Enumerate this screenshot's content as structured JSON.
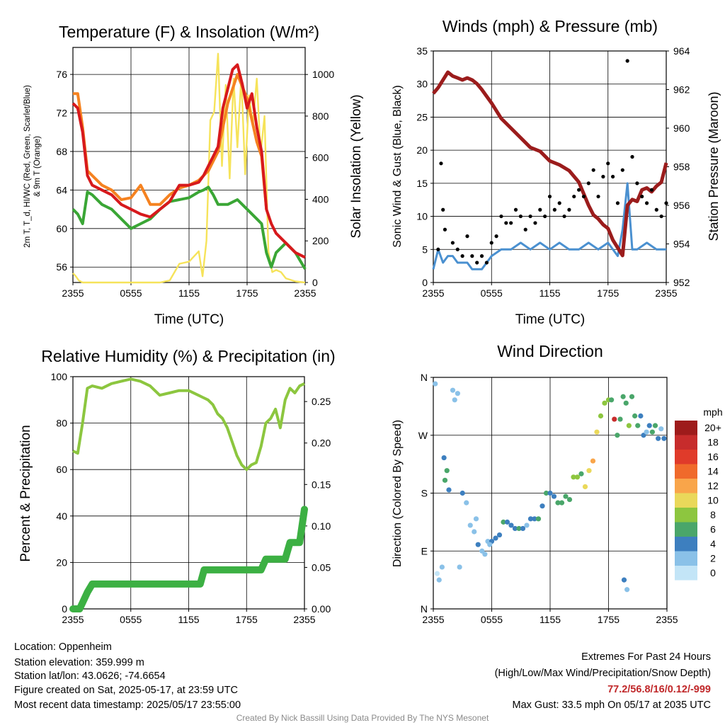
{
  "chart_data": [
    {
      "type": "line",
      "title": "Temperature (F) & Insolation (W/m²)",
      "xlabel": "Time (UTC)",
      "ylabel_line1": "2m T, T_d, HI/WC (Red, Green, Scarlet/Blue)",
      "ylabel_line2": "& 9m T (Orange)",
      "y2label": "Solar Insolation (Yellow)",
      "xticks": [
        "2355",
        "0555",
        "1155",
        "1755",
        "2355"
      ],
      "ylim": [
        54.4,
        78.8
      ],
      "yticks": [
        "56",
        "60",
        "64",
        "68",
        "72",
        "76"
      ],
      "y2lim": [
        0,
        1130
      ],
      "y2ticks": [
        "0",
        "200",
        "400",
        "600",
        "800",
        "1000"
      ],
      "colors": {
        "temp": "#d7191c",
        "hiwc": "#b2182b",
        "t9m": "#f58220",
        "dew": "#3aa635",
        "solar": "#f6e35a"
      },
      "series": [
        {
          "name": "2m T",
          "x": [
            0,
            0.5,
            1.0,
            1.5,
            2.0,
            3.0,
            4.0,
            5.0,
            6.0,
            7.0,
            8.0,
            9.0,
            10.0,
            11.0,
            12.0,
            13.0,
            13.5,
            14.0,
            14.5,
            15.0,
            15.5,
            16.0,
            16.5,
            17.0,
            17.5,
            18.0,
            18.5,
            19.0,
            19.5,
            20.0,
            20.5,
            21,
            22,
            23,
            24
          ],
          "y": [
            73,
            72.5,
            70,
            65.5,
            64.5,
            64.0,
            63.5,
            62.5,
            62.0,
            61.5,
            61.2,
            62.0,
            62.8,
            64.5,
            64.5,
            64.8,
            65.5,
            66.5,
            67.5,
            68.5,
            72.5,
            74.5,
            76.5,
            77.0,
            75.0,
            72.5,
            74.0,
            70.5,
            68.0,
            62.0,
            60.5,
            59.5,
            58.5,
            57.5,
            57.0
          ]
        },
        {
          "name": "9m T",
          "x": [
            0,
            0.5,
            1.0,
            1.5,
            2.0,
            3.0,
            4.0,
            5.0,
            6.0,
            7.0,
            8.0,
            9.0,
            10.0,
            11.0,
            12.0,
            13.0,
            13.5,
            14.0,
            15.0,
            16.0,
            17.0,
            18.0,
            19.0,
            19.5,
            20.0
          ],
          "y": [
            74.0,
            74.0,
            70.5,
            66.0,
            65.5,
            64.5,
            64.0,
            63.0,
            63.2,
            64.5,
            62.5,
            62.5,
            63.5,
            64.2,
            64.5,
            65.0,
            65.5,
            66.0,
            68.0,
            73.0,
            76.0,
            73.5,
            69.0,
            67.5,
            62.0
          ]
        },
        {
          "name": "Dewpoint",
          "x": [
            0,
            0.5,
            1.0,
            1.5,
            2.0,
            3.0,
            4.0,
            5.0,
            6.0,
            7.0,
            8.0,
            9.0,
            10.0,
            11.0,
            12.0,
            13.0,
            13.5,
            14.0,
            14.5,
            15.0,
            16.0,
            17.0,
            18.0,
            19.0,
            19.5,
            20.0,
            20.5,
            21.0,
            22.0,
            23.0,
            24.0
          ],
          "y": [
            62.0,
            61.5,
            60.5,
            63.8,
            63.5,
            62.5,
            62.0,
            61.0,
            60.0,
            60.5,
            61.0,
            62.0,
            62.8,
            63.0,
            63.2,
            63.8,
            64.0,
            64.3,
            63.5,
            62.5,
            62.5,
            63.0,
            62.0,
            61.0,
            60.5,
            57.5,
            56.0,
            57.5,
            58.5,
            57.5,
            55.8
          ]
        },
        {
          "name": "Solar",
          "x": [
            0,
            0.3,
            0.6,
            1.0,
            9.0,
            10.0,
            11.0,
            12.0,
            13.0,
            13.4,
            13.8,
            14.2,
            14.6,
            15.0,
            15.4,
            15.8,
            16.2,
            16.6,
            17.0,
            17.4,
            17.8,
            18.2,
            18.6,
            19.0,
            19.4,
            19.8,
            20.2,
            20.6,
            21.0,
            21.5,
            22.0,
            23.0,
            24.0
          ],
          "y": [
            45,
            30,
            10,
            0,
            0,
            10,
            90,
            100,
            150,
            30,
            200,
            780,
            820,
            1100,
            560,
            950,
            500,
            980,
            650,
            990,
            520,
            900,
            760,
            980,
            620,
            800,
            150,
            50,
            60,
            50,
            20,
            5,
            0
          ]
        }
      ]
    },
    {
      "type": "line",
      "title": "Winds (mph) & Pressure (mb)",
      "xlabel": "Time (UTC)",
      "ylabel": "Sonic Wind & Gust (Blue, Black)",
      "y2label": "Station Pressure (Maroon)",
      "xticks": [
        "2355",
        "0555",
        "1155",
        "1755",
        "2355"
      ],
      "ylim": [
        0,
        35
      ],
      "yticks": [
        "0",
        "5",
        "10",
        "15",
        "20",
        "25",
        "30",
        "35"
      ],
      "y2lim": [
        952,
        964
      ],
      "y2ticks": [
        "952",
        "954",
        "956",
        "958",
        "960",
        "962",
        "964"
      ],
      "colors": {
        "wind": "#4a90d0",
        "gust": "#000000",
        "pressure": "#9b1c1c"
      },
      "series": [
        {
          "name": "Pressure",
          "x": [
            0,
            0.5,
            1,
            1.5,
            2,
            2.5,
            3,
            3.5,
            4,
            4.5,
            5,
            6,
            7,
            8,
            9,
            10,
            11,
            12,
            13,
            14,
            15,
            16,
            16.5,
            17,
            17.5,
            18,
            18.5,
            19,
            19.5,
            20,
            20.5,
            21,
            21.5,
            22,
            22.5,
            23,
            23.5,
            24
          ],
          "y": [
            961.8,
            962.1,
            962.5,
            962.9,
            962.7,
            962.6,
            962.5,
            962.6,
            962.5,
            962.3,
            962.0,
            961.3,
            960.5,
            960.0,
            959.5,
            959.0,
            958.8,
            958.3,
            958.1,
            957.8,
            957.2,
            956.0,
            955.5,
            955.3,
            955.0,
            954.8,
            954.2,
            953.8,
            953.4,
            956.0,
            956.3,
            956.2,
            956.8,
            956.9,
            956.7,
            957.0,
            957.2,
            958.2
          ]
        },
        {
          "name": "Wind",
          "x": [
            0,
            0.5,
            1,
            1.5,
            2,
            2.5,
            3,
            3.5,
            4,
            4.5,
            5,
            6,
            7,
            8,
            9,
            10,
            11,
            12,
            13,
            14,
            15,
            16,
            17,
            18,
            19,
            19.5,
            20,
            20.5,
            21,
            22,
            23,
            24
          ],
          "y": [
            2,
            5,
            3,
            4,
            4,
            3,
            3,
            3,
            2,
            2,
            2,
            4,
            5,
            5,
            6,
            5,
            6,
            5,
            6,
            5,
            5,
            6,
            5,
            6,
            4,
            8,
            15,
            5,
            5,
            6,
            5,
            5
          ]
        },
        {
          "name": "Gust",
          "x": [
            0.5,
            0.8,
            1,
            1.2,
            2,
            2.5,
            3,
            3.5,
            4,
            4.5,
            5,
            5.5,
            6,
            6.5,
            7,
            7.5,
            8,
            8.5,
            9,
            9.5,
            10,
            10.5,
            11,
            11.5,
            12,
            12.5,
            13,
            13.5,
            14,
            14.5,
            15,
            15.5,
            16,
            16.5,
            17,
            17.5,
            18,
            18.5,
            19,
            19.5,
            20,
            20.5,
            21,
            21.5,
            22,
            22.5,
            23,
            23.5,
            24
          ],
          "y": [
            5,
            18,
            11,
            8,
            6,
            5,
            4,
            7,
            4,
            3,
            4,
            3,
            6,
            7,
            10,
            9,
            9,
            11,
            10,
            8,
            10,
            9,
            11,
            10,
            13,
            11,
            12,
            10,
            11,
            13,
            14,
            13,
            15,
            17,
            13,
            16,
            18,
            16,
            12,
            17,
            33.5,
            19,
            15,
            13,
            12,
            14,
            11,
            10,
            12
          ]
        }
      ]
    },
    {
      "type": "line",
      "title": "Relative Humidity (%) & Precipitation (in)",
      "ylabel": "Percent & Precipitation",
      "xticks": [
        "2355",
        "0555",
        "1155",
        "1755",
        "2355"
      ],
      "ylim": [
        0,
        100
      ],
      "yticks": [
        "0",
        "20",
        "40",
        "60",
        "80",
        "100"
      ],
      "y2lim": [
        0,
        0.28
      ],
      "y2ticks": [
        "0.00",
        "0.05",
        "0.10",
        "0.15",
        "0.20",
        "0.25"
      ],
      "colors": {
        "rh": "#8cc63f",
        "precip": "#3cb043"
      },
      "series": [
        {
          "name": "RH",
          "x": [
            0,
            0.5,
            1.0,
            1.5,
            2,
            3,
            4,
            5,
            6,
            7,
            8,
            9,
            10,
            11,
            12,
            13,
            13.5,
            14,
            14.5,
            15,
            15.5,
            16,
            16.5,
            17,
            17.5,
            18,
            18.5,
            19,
            19.5,
            20,
            20.5,
            21,
            21.5,
            22,
            22.5,
            23,
            23.5,
            24
          ],
          "y": [
            68,
            67,
            80,
            95,
            96,
            95,
            97,
            98,
            99,
            98,
            96,
            92,
            93,
            94,
            94,
            92,
            91,
            90,
            88,
            84,
            82,
            78,
            72,
            66,
            62,
            60,
            62,
            63,
            70,
            80,
            82,
            86,
            78,
            90,
            95,
            93,
            96,
            97
          ]
        },
        {
          "name": "Precip",
          "x": [
            0,
            0.7,
            1.1,
            1.5,
            2,
            4,
            6,
            8,
            10,
            12,
            13.2,
            13.6,
            16,
            18,
            19.5,
            20,
            21,
            22,
            22.5,
            23,
            23.5,
            24
          ],
          "y": [
            0,
            0,
            0.01,
            0.02,
            0.03,
            0.03,
            0.03,
            0.03,
            0.03,
            0.03,
            0.03,
            0.047,
            0.047,
            0.047,
            0.047,
            0.06,
            0.06,
            0.06,
            0.08,
            0.08,
            0.08,
            0.12
          ]
        }
      ]
    },
    {
      "type": "scatter",
      "title": "Wind Direction",
      "ylabel": "Direction (Colored By Speed)",
      "xticks": [
        "2355",
        "0555",
        "1155",
        "1755",
        "2355"
      ],
      "yticks": [
        "N",
        "E",
        "S",
        "W",
        "N"
      ],
      "ylim": [
        0,
        360
      ],
      "legend_title": "mph",
      "legend_labels": [
        "20+",
        "18",
        "16",
        "14",
        "12",
        "10",
        "8",
        "6",
        "4",
        "2",
        "0"
      ],
      "legend_colors": [
        "#9e1b1b",
        "#c72c2c",
        "#e03b2a",
        "#f06a2b",
        "#f9a54a",
        "#ead85a",
        "#8dc63f",
        "#4aa66a",
        "#3d7fbf",
        "#8ac1e8",
        "#c3e5f7"
      ],
      "x": [
        0.2,
        0.4,
        0.6,
        0.9,
        1.2,
        1.4,
        1.6,
        2.0,
        2.2,
        2.5,
        3.0,
        3.4,
        3.8,
        4.2,
        4.6,
        5.0,
        5.3,
        5.6,
        6.0,
        6.4,
        6.8,
        7.2,
        7.6,
        8.0,
        8.4,
        8.8,
        9.2,
        9.6,
        10.0,
        10.4,
        10.8,
        11.2,
        11.6,
        12.0,
        12.4,
        12.8,
        13.2,
        13.6,
        14.0,
        14.4,
        14.8,
        15.2,
        15.6,
        16.0,
        16.4,
        16.8,
        17.2,
        17.6,
        18.0,
        18.3,
        18.6,
        18.9,
        19.2,
        19.5,
        19.8,
        20.1,
        20.4,
        20.7,
        21.0,
        21.3,
        21.6,
        21.9,
        22.2,
        22.5,
        22.8,
        23.1,
        23.4,
        23.7,
        1.1,
        2.7,
        4.4,
        5.8,
        19.6,
        19.9
      ],
      "y": [
        350,
        55,
        45,
        65,
        200,
        215,
        185,
        340,
        325,
        335,
        180,
        165,
        130,
        120,
        100,
        90,
        85,
        105,
        105,
        110,
        115,
        135,
        135,
        130,
        125,
        125,
        125,
        130,
        140,
        140,
        140,
        160,
        180,
        180,
        175,
        165,
        165,
        175,
        170,
        205,
        205,
        210,
        190,
        215,
        230,
        275,
        300,
        320,
        325,
        325,
        295,
        270,
        295,
        330,
        320,
        285,
        330,
        300,
        285,
        300,
        270,
        275,
        285,
        275,
        285,
        265,
        280,
        265,
        235,
        65,
        140,
        100,
        45,
        30
      ],
      "speed": [
        2,
        1,
        3,
        3,
        6,
        7,
        5,
        2,
        2,
        3,
        4,
        2,
        2,
        3,
        4,
        3,
        3,
        2,
        4,
        5,
        5,
        6,
        5,
        5,
        4,
        6,
        4,
        3,
        4,
        5,
        6,
        5,
        6,
        5,
        5,
        6,
        6,
        7,
        6,
        8,
        8,
        7,
        10,
        11,
        12,
        10,
        8,
        8,
        8,
        6,
        18,
        7,
        6,
        7,
        6,
        8,
        7,
        6,
        6,
        5,
        4,
        3,
        4,
        6,
        7,
        5,
        3,
        4,
        4,
        2,
        3,
        3,
        4,
        3
      ]
    }
  ],
  "footer": {
    "location": "Location: Oppenheim",
    "elevation": "Station elevation: 359.999 m",
    "latlon": "Station lat/lon: 43.0626; -74.6654",
    "created": "Figure created on Sat, 2025-05-17, at 23:59 UTC",
    "recent": "Most recent data timestamp: 2025/05/17 23:55:00",
    "extremes_title": "Extremes For Past 24 Hours",
    "extremes_sub": "(High/Low/Max Wind/Precipitation/Snow Depth)",
    "extremes_values": "77.2/56.8/16/0.12/-999",
    "max_gust": "Max Gust: 33.5 mph On 05/17 at 2035 UTC",
    "credit": "Created By Nick Bassill Using Data Provided By The NYS Mesonet",
    "extremes_color": "#c0282a"
  }
}
